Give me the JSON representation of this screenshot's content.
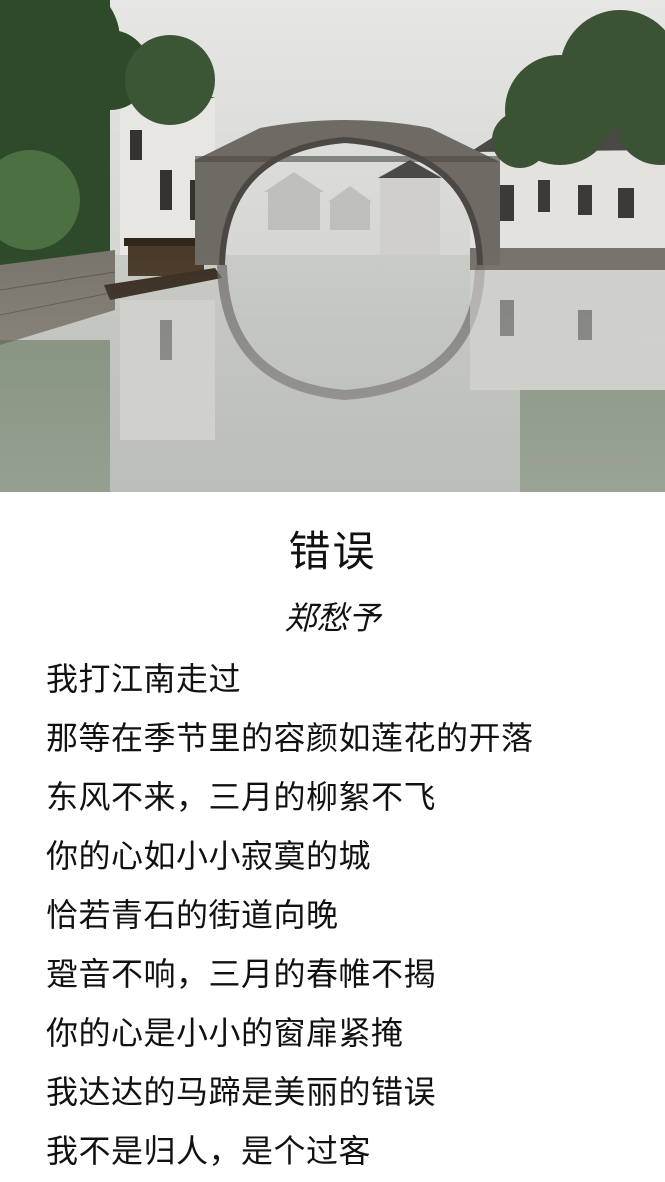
{
  "poem": {
    "title": "错误",
    "author": "郑愁予",
    "lines": [
      "我打江南走过",
      "那等在季节里的容颜如莲花的开落",
      "东风不来，三月的柳絮不飞",
      "你的心如小小寂寞的城",
      "恰若青石的街道向晚",
      "跫音不响，三月的春帷不揭",
      "你的心是小小的窗扉紧掩",
      "我达达的马蹄是美丽的错误",
      "我不是归人，是个过客"
    ]
  },
  "colors": {
    "text": "#111111",
    "background": "#ffffff",
    "sky": "#dcdcda",
    "water": "#cfd0cc",
    "foliage": "#3f5a36",
    "bridge_stone": "#6e6a64"
  },
  "photo": {
    "subject": "water-town-canal-arch-bridge"
  }
}
